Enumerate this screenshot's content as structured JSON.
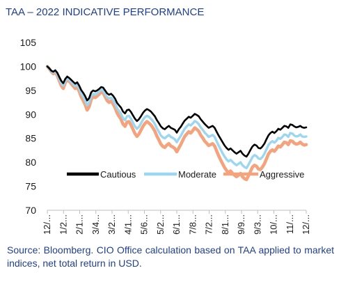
{
  "title": "TAA – 2022 INDICATIVE PERFORMANCE",
  "source_note": "Source: Bloomberg. CIO Office calculation based on TAA applied to market indices, net total return in USD.",
  "colors": {
    "title": "#1f3f8f",
    "cautious": "#000000",
    "moderate": "#9cd6f0",
    "aggressive": "#f5a37c",
    "axis": "#bfbfbf"
  },
  "chart_data": {
    "type": "line",
    "title": "TAA – 2022 INDICATIVE PERFORMANCE",
    "xlabel": "",
    "ylabel": "",
    "ylim": [
      70,
      105
    ],
    "yticks": [
      70,
      75,
      80,
      85,
      90,
      95,
      100,
      105
    ],
    "grid": false,
    "legend_position": "lower-center",
    "x_tick_labels": [
      "12/...",
      "1/2...",
      "2/1...",
      "3/4...",
      "3/2...",
      "4/1...",
      "5/6...",
      "5/2...",
      "6/1...",
      "7/8...",
      "7/2...",
      "8/1...",
      "9/9...",
      "9/3...",
      "10/...",
      "11/...",
      "12/..."
    ],
    "x": [
      0,
      2,
      4,
      6,
      8,
      10,
      12,
      14,
      16,
      18,
      20,
      22,
      24,
      26,
      28,
      30,
      32,
      34,
      36,
      38,
      40,
      42,
      44,
      46,
      48,
      50,
      52,
      54,
      56,
      58,
      60,
      62,
      64,
      66,
      68,
      70,
      72,
      74,
      76,
      78,
      80,
      82,
      84,
      86,
      88,
      90,
      92,
      94,
      96,
      98,
      100,
      102,
      104,
      106,
      108,
      110,
      112,
      114,
      116,
      118,
      120,
      122,
      124,
      126,
      128,
      130,
      132,
      134,
      136,
      138,
      140,
      142,
      144,
      146,
      148,
      150,
      152,
      154,
      156,
      158,
      160,
      162,
      164,
      166,
      168,
      170,
      172,
      174,
      176,
      178,
      180,
      182,
      184,
      186,
      188,
      190,
      192,
      194,
      196,
      198,
      200,
      202,
      204,
      206,
      208,
      210,
      212,
      214,
      216,
      218,
      220,
      222,
      224,
      226,
      228,
      230,
      232,
      234,
      236,
      238,
      240,
      242,
      244,
      246,
      248,
      250,
      252,
      254,
      256,
      258,
      260
    ],
    "series": [
      {
        "name": "Cautious",
        "color": "#000000",
        "values": [
          100.0,
          99.6,
          99.1,
          98.9,
          99.2,
          98.7,
          97.8,
          97.0,
          96.5,
          97.4,
          97.9,
          97.6,
          97.2,
          96.8,
          96.4,
          96.7,
          96.0,
          95.1,
          94.5,
          93.8,
          92.9,
          93.4,
          94.6,
          95.0,
          94.8,
          95.0,
          95.3,
          95.7,
          95.6,
          95.0,
          94.4,
          94.1,
          94.3,
          93.9,
          93.3,
          92.4,
          91.9,
          91.4,
          90.6,
          90.2,
          90.9,
          91.0,
          90.5,
          89.8,
          89.1,
          88.6,
          89.0,
          89.6,
          90.3,
          90.8,
          91.1,
          90.9,
          90.6,
          90.1,
          89.6,
          88.8,
          88.2,
          87.5,
          87.1,
          86.9,
          87.3,
          87.6,
          87.2,
          87.0,
          86.8,
          86.2,
          86.9,
          87.4,
          88.1,
          88.7,
          89.1,
          89.5,
          89.3,
          89.7,
          90.1,
          89.9,
          89.6,
          89.0,
          88.5,
          88.0,
          87.6,
          87.2,
          87.4,
          87.6,
          87.2,
          86.4,
          85.6,
          84.9,
          84.2,
          83.5,
          83.0,
          82.6,
          82.9,
          82.5,
          82.1,
          81.8,
          82.1,
          82.4,
          81.8,
          81.4,
          81.2,
          81.8,
          82.6,
          83.3,
          83.7,
          83.5,
          83.0,
          82.9,
          83.3,
          83.9,
          84.8,
          85.6,
          86.1,
          86.4,
          86.1,
          86.5,
          87.0,
          86.8,
          87.2,
          87.6,
          87.5,
          87.2,
          87.9,
          87.8,
          87.5,
          87.3,
          87.4,
          87.6,
          87.3,
          87.2,
          87.3
        ]
      },
      {
        "name": "Moderate",
        "color": "#9cd6f0",
        "values": [
          100.0,
          99.6,
          99.0,
          98.7,
          99.0,
          98.4,
          97.4,
          96.5,
          96.0,
          97.0,
          97.5,
          97.2,
          96.8,
          96.3,
          95.9,
          96.2,
          95.4,
          94.4,
          93.7,
          92.9,
          91.9,
          92.5,
          93.8,
          94.3,
          94.1,
          94.4,
          94.7,
          95.2,
          95.0,
          94.3,
          93.6,
          93.3,
          93.5,
          93.0,
          92.3,
          91.3,
          90.7,
          90.1,
          89.2,
          88.8,
          89.6,
          89.7,
          89.1,
          88.3,
          87.5,
          87.0,
          87.4,
          88.1,
          88.9,
          89.4,
          89.7,
          89.5,
          89.1,
          88.6,
          88.0,
          87.1,
          86.4,
          85.6,
          85.2,
          85.0,
          85.4,
          85.7,
          85.3,
          85.1,
          84.8,
          84.2,
          84.9,
          85.5,
          86.3,
          87.0,
          87.5,
          87.9,
          87.7,
          88.1,
          88.6,
          88.4,
          88.0,
          87.3,
          86.8,
          86.2,
          85.8,
          85.3,
          85.5,
          85.7,
          85.3,
          84.4,
          83.5,
          82.7,
          81.9,
          81.2,
          80.6,
          80.2,
          80.5,
          80.1,
          79.7,
          79.4,
          79.7,
          80.0,
          79.4,
          79.0,
          78.8,
          79.5,
          80.3,
          81.1,
          81.5,
          81.3,
          80.8,
          80.7,
          81.1,
          81.8,
          82.7,
          83.6,
          84.1,
          84.4,
          84.1,
          84.5,
          85.1,
          84.9,
          85.3,
          85.8,
          85.7,
          85.3,
          86.1,
          86.0,
          85.6,
          85.4,
          85.5,
          85.8,
          85.4,
          85.3,
          85.4
        ]
      },
      {
        "name": "Aggressive",
        "color": "#f5a37c",
        "values": [
          100.0,
          99.5,
          98.9,
          98.5,
          98.8,
          98.1,
          97.0,
          96.0,
          95.4,
          96.6,
          97.2,
          96.9,
          96.4,
          95.9,
          95.4,
          95.7,
          94.8,
          93.7,
          92.9,
          92.0,
          90.9,
          91.6,
          93.1,
          93.7,
          93.5,
          93.8,
          94.2,
          94.7,
          94.5,
          93.7,
          92.9,
          92.5,
          92.8,
          92.2,
          91.4,
          90.3,
          89.6,
          89.0,
          88.0,
          87.5,
          88.4,
          88.5,
          87.8,
          86.9,
          86.0,
          85.4,
          85.9,
          86.7,
          87.5,
          88.1,
          88.5,
          88.2,
          87.8,
          87.2,
          86.5,
          85.5,
          84.7,
          83.8,
          83.3,
          83.1,
          83.6,
          83.9,
          83.4,
          83.2,
          82.9,
          82.2,
          83.0,
          83.7,
          84.6,
          85.4,
          85.9,
          86.4,
          86.1,
          86.6,
          87.2,
          86.9,
          86.5,
          85.7,
          85.1,
          84.4,
          84.0,
          83.5,
          83.7,
          83.9,
          83.4,
          82.4,
          81.4,
          80.5,
          79.7,
          78.9,
          78.3,
          77.8,
          78.2,
          77.7,
          77.3,
          77.0,
          77.3,
          77.7,
          77.0,
          76.6,
          76.4,
          77.2,
          78.1,
          79.0,
          79.4,
          79.2,
          78.6,
          78.5,
          79.0,
          79.7,
          80.7,
          81.7,
          82.3,
          82.6,
          82.3,
          82.8,
          83.4,
          83.2,
          83.7,
          84.2,
          84.1,
          83.7,
          84.5,
          84.4,
          84.0,
          83.8,
          83.9,
          84.2,
          83.8,
          83.6,
          83.7
        ]
      }
    ]
  }
}
